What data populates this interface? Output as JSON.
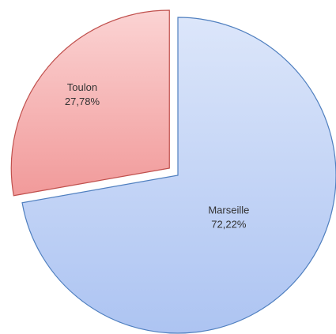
{
  "chart_data": {
    "type": "pie",
    "categories": [
      "Marseille",
      "Toulon"
    ],
    "values": [
      72.22,
      27.78
    ],
    "value_labels": [
      "72,22%",
      "27,78%"
    ],
    "colors": [
      "#b9cdf5",
      "#f5a8a8"
    ],
    "edge_colors": [
      "#4f7fbf",
      "#c0504d"
    ],
    "exploded": [
      false,
      true
    ]
  }
}
